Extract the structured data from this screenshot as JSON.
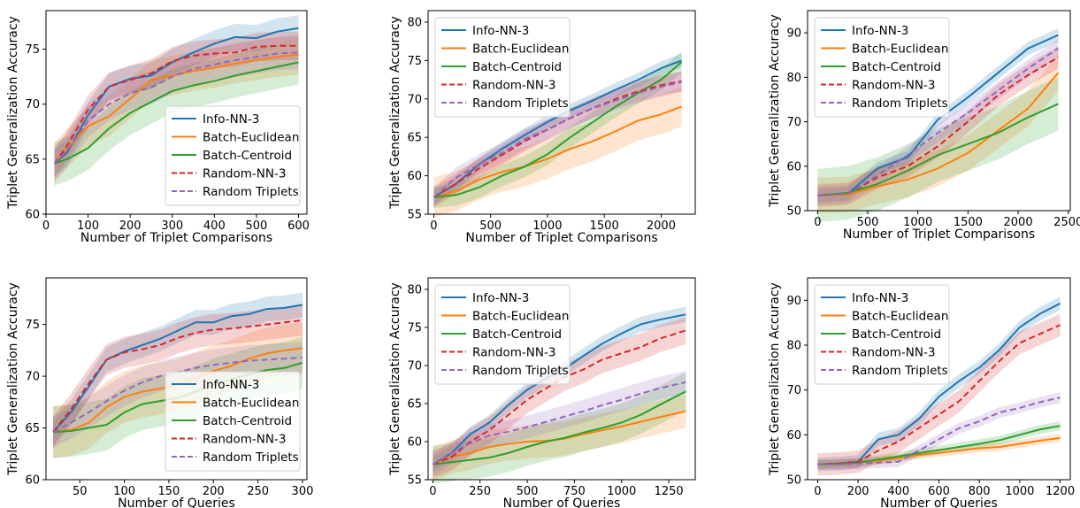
{
  "figure": {
    "legend_labels": [
      "Info-NN-3",
      "Batch-Euclidean",
      "Batch-Centroid",
      "Random-NN-3",
      "Random Triplets"
    ],
    "colors": {
      "Info-NN-3": "#1f77b4",
      "Batch-Euclidean": "#ff7f0e",
      "Batch-Centroid": "#2ca02c",
      "Random-NN-3": "#d62728",
      "Random Triplets": "#9467bd"
    }
  },
  "chart_data": [
    {
      "type": "line",
      "panel": "top-left",
      "xlabel": "Number of Triplet Comparisons",
      "ylabel": "Triplet Generalization Accuracy",
      "xlim": [
        0,
        620
      ],
      "ylim": [
        60,
        78.5
      ],
      "xticks": [
        0,
        100,
        200,
        300,
        400,
        500,
        600
      ],
      "yticks": [
        60,
        65,
        70,
        75
      ],
      "legend": "lower-right",
      "x": [
        20,
        50,
        100,
        150,
        200,
        250,
        300,
        350,
        400,
        450,
        500,
        550,
        600
      ],
      "series": [
        {
          "name": "Info-NN-3",
          "values": [
            64.6,
            65.6,
            69.0,
            71.6,
            72.3,
            72.6,
            73.8,
            74.7,
            75.5,
            76.1,
            76.0,
            76.6,
            76.9
          ],
          "band": 1.2
        },
        {
          "name": "Batch-Euclidean",
          "values": [
            64.6,
            66.0,
            68.0,
            68.9,
            70.5,
            72.2,
            72.6,
            73.0,
            73.3,
            73.7,
            74.0,
            74.3,
            74.5
          ],
          "band": 1.8
        },
        {
          "name": "Batch-Centroid",
          "values": [
            64.6,
            65.0,
            66.0,
            67.8,
            69.2,
            70.2,
            71.2,
            71.7,
            72.1,
            72.6,
            73.0,
            73.4,
            73.8
          ],
          "band": 2.0
        },
        {
          "name": "Random-NN-3",
          "values": [
            64.6,
            66.2,
            69.5,
            71.6,
            72.2,
            72.8,
            73.9,
            74.4,
            74.6,
            74.7,
            75.2,
            75.3,
            75.3
          ],
          "band": 1.3
        },
        {
          "name": "Random Triplets",
          "values": [
            64.6,
            65.8,
            68.5,
            70.0,
            71.0,
            71.5,
            72.5,
            73.2,
            73.6,
            74.0,
            74.3,
            74.6,
            74.7
          ],
          "band": 1.5
        }
      ]
    },
    {
      "type": "line",
      "panel": "top-middle",
      "xlabel": "Number of Triplet Comparisons",
      "ylabel": "Triplet Generalization Accuracy",
      "xlim": [
        -50,
        2300
      ],
      "ylim": [
        55,
        81.5
      ],
      "xticks": [
        0,
        500,
        1000,
        1500,
        2000
      ],
      "yticks": [
        55,
        60,
        65,
        70,
        75,
        80
      ],
      "legend": "upper-left",
      "x": [
        0,
        200,
        400,
        600,
        800,
        1000,
        1200,
        1400,
        1600,
        1800,
        2000,
        2180
      ],
      "series": [
        {
          "name": "Info-NN-3",
          "values": [
            57.2,
            59.0,
            61.5,
            63.5,
            65.3,
            67.0,
            68.5,
            69.8,
            71.2,
            72.5,
            74.0,
            75.0
          ],
          "band": 0.9
        },
        {
          "name": "Batch-Euclidean",
          "values": [
            57.2,
            58.0,
            59.5,
            60.5,
            61.2,
            62.2,
            63.5,
            64.5,
            65.8,
            67.2,
            68.0,
            69.0
          ],
          "band": 2.6
        },
        {
          "name": "Batch-Centroid",
          "values": [
            57.2,
            57.5,
            58.5,
            60.0,
            61.2,
            62.8,
            65.0,
            67.0,
            69.0,
            70.8,
            72.5,
            74.8
          ],
          "band": 1.4
        },
        {
          "name": "Random-NN-3",
          "values": [
            57.2,
            59.0,
            61.0,
            62.7,
            64.5,
            66.0,
            67.5,
            68.8,
            70.0,
            71.0,
            71.8,
            72.3
          ],
          "band": 1.3
        },
        {
          "name": "Random Triplets",
          "values": [
            57.2,
            59.8,
            61.5,
            63.0,
            64.8,
            66.0,
            67.5,
            68.8,
            69.8,
            70.8,
            71.6,
            72.2
          ],
          "band": 1.3
        }
      ]
    },
    {
      "type": "line",
      "panel": "top-right",
      "xlabel": "Number of Triplet Comparisons",
      "ylabel": "Triplet Generalization Accuracy",
      "xlim": [
        -100,
        2520
      ],
      "ylim": [
        50,
        95
      ],
      "xticks": [
        0,
        500,
        1000,
        1500,
        2000,
        2500
      ],
      "yticks": [
        50,
        60,
        70,
        80,
        90
      ],
      "legend": "upper-left",
      "x": [
        0,
        300,
        600,
        900,
        1200,
        1500,
        1800,
        2100,
        2400
      ],
      "series": [
        {
          "name": "Info-NN-3",
          "values": [
            53.4,
            53.8,
            59.5,
            62.0,
            70.5,
            75.5,
            81.0,
            86.5,
            89.5
          ],
          "band": 1.5
        },
        {
          "name": "Batch-Euclidean",
          "values": [
            53.4,
            53.6,
            55.5,
            57.0,
            59.5,
            63.0,
            68.0,
            73.0,
            81.0
          ],
          "band": 4.0
        },
        {
          "name": "Batch-Centroid",
          "values": [
            53.4,
            54.0,
            56.0,
            59.0,
            62.5,
            65.0,
            67.5,
            71.0,
            74.0
          ],
          "band": 6.0
        },
        {
          "name": "Random-NN-3",
          "values": [
            53.4,
            53.8,
            57.5,
            60.0,
            64.5,
            70.0,
            76.0,
            80.5,
            84.5
          ],
          "band": 2.5
        },
        {
          "name": "Random Triplets",
          "values": [
            53.4,
            53.8,
            58.0,
            62.5,
            67.5,
            72.0,
            77.0,
            82.0,
            86.5
          ],
          "band": 2.0
        }
      ]
    },
    {
      "type": "line",
      "panel": "bottom-left",
      "xlabel": "Number of Queries",
      "ylabel": "Triplet Generalization Accuracy",
      "xlim": [
        12,
        305
      ],
      "ylim": [
        60,
        79.5
      ],
      "xticks": [
        50,
        100,
        150,
        200,
        250,
        300
      ],
      "yticks": [
        60,
        65,
        70,
        75
      ],
      "legend": "lower-right",
      "x": [
        20,
        40,
        60,
        80,
        100,
        120,
        140,
        160,
        180,
        200,
        220,
        240,
        260,
        280,
        300
      ],
      "series": [
        {
          "name": "Info-NN-3",
          "values": [
            64.6,
            66.5,
            69.0,
            71.6,
            72.4,
            73.0,
            73.6,
            74.4,
            75.2,
            75.2,
            75.8,
            76.0,
            76.5,
            76.6,
            76.9
          ],
          "band": 1.2
        },
        {
          "name": "Batch-Euclidean",
          "values": [
            64.6,
            64.8,
            65.5,
            67.0,
            68.0,
            68.5,
            68.8,
            69.2,
            69.8,
            70.5,
            71.0,
            71.7,
            72.2,
            72.5,
            72.7
          ],
          "band": 2.5
        },
        {
          "name": "Batch-Centroid",
          "values": [
            64.6,
            64.7,
            65.0,
            65.3,
            66.5,
            67.3,
            67.6,
            67.9,
            68.5,
            69.2,
            69.7,
            70.2,
            70.6,
            70.8,
            71.3
          ],
          "band": 2.5
        },
        {
          "name": "Random-NN-3",
          "values": [
            64.6,
            66.8,
            69.3,
            71.6,
            72.3,
            72.6,
            73.0,
            73.7,
            74.2,
            74.5,
            74.6,
            74.8,
            75.0,
            75.2,
            75.4
          ],
          "band": 1.5
        },
        {
          "name": "Random Triplets",
          "values": [
            64.6,
            65.5,
            66.5,
            67.6,
            68.6,
            69.4,
            70.0,
            70.4,
            70.8,
            71.1,
            71.3,
            71.5,
            71.6,
            71.7,
            71.8
          ],
          "band": 1.5
        }
      ]
    },
    {
      "type": "line",
      "panel": "bottom-middle",
      "xlabel": "Number of Queries",
      "ylabel": "Triplet Generalization Accuracy",
      "xlim": [
        -25,
        1390
      ],
      "ylim": [
        55,
        81.5
      ],
      "xticks": [
        0,
        250,
        500,
        750,
        1000,
        1250
      ],
      "yticks": [
        55,
        60,
        65,
        70,
        75,
        80
      ],
      "legend": "upper-left",
      "x": [
        0,
        100,
        200,
        300,
        400,
        500,
        600,
        700,
        800,
        900,
        1000,
        1100,
        1200,
        1340
      ],
      "series": [
        {
          "name": "Info-NN-3",
          "values": [
            57.0,
            58.5,
            61.0,
            62.5,
            64.8,
            66.8,
            68.3,
            69.6,
            71.3,
            72.9,
            74.2,
            75.4,
            76.0,
            76.7
          ],
          "band": 1.0
        },
        {
          "name": "Batch-Euclidean",
          "values": [
            57.0,
            58.0,
            58.5,
            59.3,
            59.7,
            60.0,
            60.1,
            60.4,
            61.0,
            61.5,
            62.0,
            62.6,
            63.2,
            64.0
          ],
          "band": 2.2
        },
        {
          "name": "Batch-Centroid",
          "values": [
            57.0,
            57.3,
            57.6,
            57.9,
            58.5,
            59.3,
            60.0,
            60.5,
            61.2,
            61.8,
            62.5,
            63.5,
            64.8,
            66.6
          ],
          "band": 2.5
        },
        {
          "name": "Random-NN-3",
          "values": [
            57.0,
            58.0,
            60.0,
            61.5,
            63.5,
            65.5,
            67.0,
            68.5,
            69.5,
            70.8,
            71.6,
            72.4,
            73.5,
            74.6
          ],
          "band": 1.8
        },
        {
          "name": "Random Triplets",
          "values": [
            57.0,
            58.5,
            59.8,
            60.8,
            61.3,
            61.9,
            62.6,
            63.3,
            64.0,
            64.8,
            65.5,
            66.3,
            67.0,
            67.8
          ],
          "band": 1.5
        }
      ]
    },
    {
      "type": "line",
      "panel": "bottom-right",
      "xlabel": "Number of Queries",
      "ylabel": "Triplet Generalization Accuracy",
      "xlim": [
        -50,
        1250
      ],
      "ylim": [
        50,
        95
      ],
      "xticks": [
        0,
        200,
        400,
        600,
        800,
        1000,
        1200
      ],
      "yticks": [
        50,
        60,
        70,
        80,
        90
      ],
      "legend": "upper-left",
      "x": [
        0,
        100,
        200,
        300,
        400,
        500,
        600,
        700,
        800,
        900,
        1000,
        1100,
        1200
      ],
      "series": [
        {
          "name": "Info-NN-3",
          "values": [
            53.4,
            53.6,
            54.0,
            59.0,
            60.0,
            63.5,
            68.5,
            72.0,
            75.0,
            79.0,
            84.0,
            87.0,
            89.3
          ],
          "band": 1.5
        },
        {
          "name": "Batch-Euclidean",
          "values": [
            53.4,
            53.5,
            53.8,
            54.2,
            54.8,
            55.5,
            56.0,
            56.5,
            57.0,
            57.3,
            58.0,
            58.7,
            59.3
          ],
          "band": 0.9
        },
        {
          "name": "Batch-Centroid",
          "values": [
            53.4,
            53.5,
            53.8,
            54.5,
            55.2,
            55.9,
            56.6,
            57.3,
            58.0,
            58.8,
            60.0,
            61.2,
            62.0
          ],
          "band": 1.0
        },
        {
          "name": "Random-NN-3",
          "values": [
            53.4,
            53.6,
            54.0,
            56.5,
            58.5,
            61.5,
            64.5,
            67.5,
            72.0,
            76.5,
            80.5,
            82.5,
            84.5
          ],
          "band": 2.5
        },
        {
          "name": "Random Triplets",
          "values": [
            53.4,
            53.4,
            53.6,
            53.8,
            54.0,
            56.5,
            59.0,
            61.5,
            63.0,
            65.0,
            66.0,
            67.3,
            68.3
          ],
          "band": 1.2
        }
      ]
    }
  ]
}
